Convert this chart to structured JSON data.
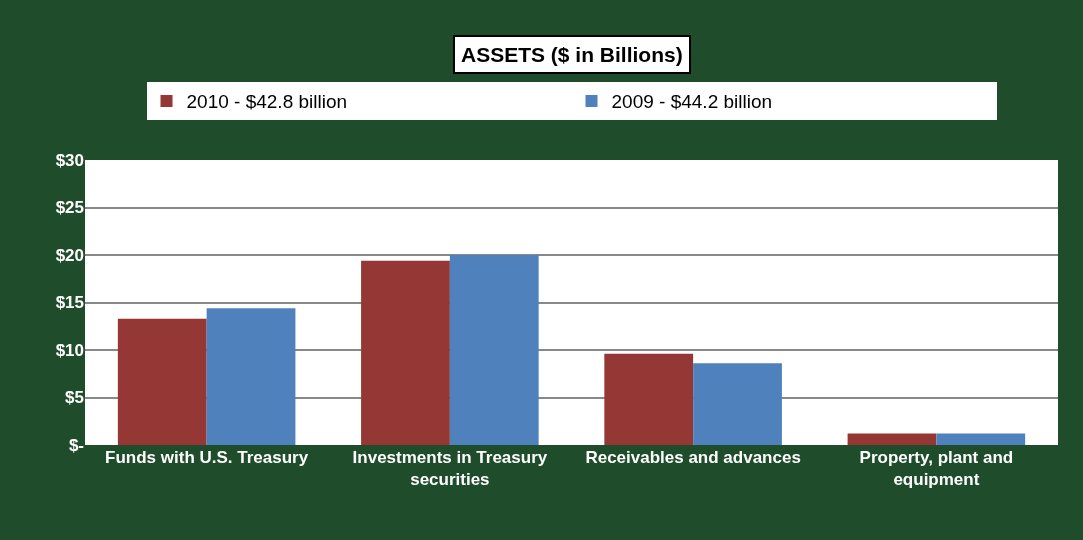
{
  "chart_data": {
    "type": "bar",
    "title": "ASSETS ($ in Billions)",
    "categories": [
      "Funds with U.S. Treasury",
      "Investments in Treasury securities",
      "Receivables and advances",
      "Property, plant and equipment"
    ],
    "series": [
      {
        "name": "2010 - $42.8 billion",
        "color": "#953735",
        "values": [
          13.3,
          19.4,
          9.6,
          1.2
        ]
      },
      {
        "name": "2009 - $44.2 billion",
        "color": "#4f81bd",
        "values": [
          14.4,
          20.0,
          8.6,
          1.2
        ]
      }
    ],
    "ylim": [
      0,
      30
    ],
    "yticks": [
      {
        "value": 0,
        "label": "$-"
      },
      {
        "value": 5,
        "label": "$5"
      },
      {
        "value": 10,
        "label": "$10"
      },
      {
        "value": 15,
        "label": "$15"
      },
      {
        "value": 20,
        "label": "$20"
      },
      {
        "value": 25,
        "label": "$25"
      },
      {
        "value": 30,
        "label": "$30"
      }
    ],
    "grid": "y",
    "legend": "top"
  }
}
